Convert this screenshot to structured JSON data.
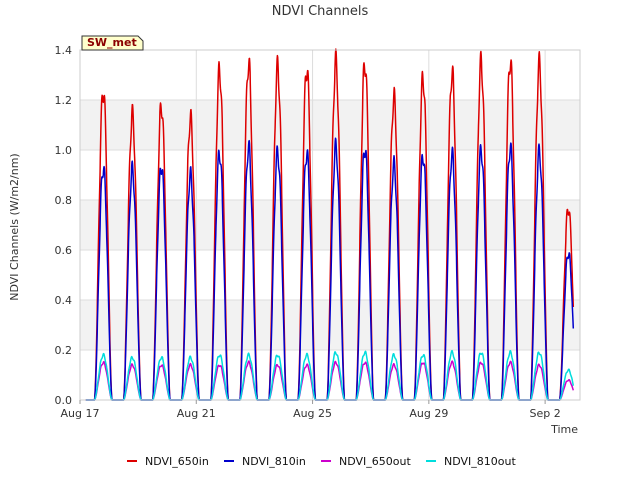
{
  "chart_data": {
    "type": "line",
    "title": "NDVI Channels",
    "xlabel": "Time",
    "ylabel": "NDVI Channels (W/m2/nm)",
    "station_label": "SW_met",
    "ylim": [
      0,
      1.4
    ],
    "xlim_days": [
      0,
      17.2
    ],
    "y_ticks": [
      "0.0",
      "0.2",
      "0.4",
      "0.6",
      "0.8",
      "1.0",
      "1.2",
      "1.4"
    ],
    "x_ticks": [
      {
        "label": "Aug 17",
        "day": 0
      },
      {
        "label": "Aug 21",
        "day": 4
      },
      {
        "label": "Aug 25",
        "day": 8
      },
      {
        "label": "Aug 29",
        "day": 12
      },
      {
        "label": "Sep 2",
        "day": 16
      }
    ],
    "peak_days": [
      0.8,
      1.8,
      2.8,
      3.8,
      4.8,
      5.8,
      6.8,
      7.8,
      8.8,
      9.8,
      10.8,
      11.8,
      12.8,
      13.8,
      14.8,
      15.8,
      16.8
    ],
    "grid": true,
    "legend_position": "bottom",
    "series": [
      {
        "name": "NDVI_650in",
        "color": "#dd0000",
        "peaks": [
          1.24,
          1.14,
          1.18,
          1.13,
          1.32,
          1.35,
          1.33,
          1.33,
          1.35,
          1.35,
          1.21,
          1.29,
          1.31,
          1.35,
          1.36,
          1.34,
          0.77
        ]
      },
      {
        "name": "NDVI_810in",
        "color": "#0000cc",
        "peaks": [
          0.93,
          0.92,
          0.94,
          0.9,
          0.99,
          1.01,
          0.99,
          0.99,
          1.01,
          1.01,
          0.94,
          0.98,
          0.98,
          1.0,
          1.01,
          0.99,
          0.59
        ]
      },
      {
        "name": "NDVI_650out",
        "color": "#cc00cc",
        "peaks": [
          0.15,
          0.14,
          0.14,
          0.14,
          0.14,
          0.15,
          0.14,
          0.14,
          0.15,
          0.15,
          0.14,
          0.15,
          0.15,
          0.15,
          0.15,
          0.14,
          0.08
        ]
      },
      {
        "name": "NDVI_810out",
        "color": "#00dddd",
        "peaks": [
          0.18,
          0.17,
          0.17,
          0.17,
          0.18,
          0.18,
          0.18,
          0.18,
          0.19,
          0.19,
          0.18,
          0.18,
          0.19,
          0.19,
          0.19,
          0.19,
          0.12
        ]
      }
    ]
  }
}
